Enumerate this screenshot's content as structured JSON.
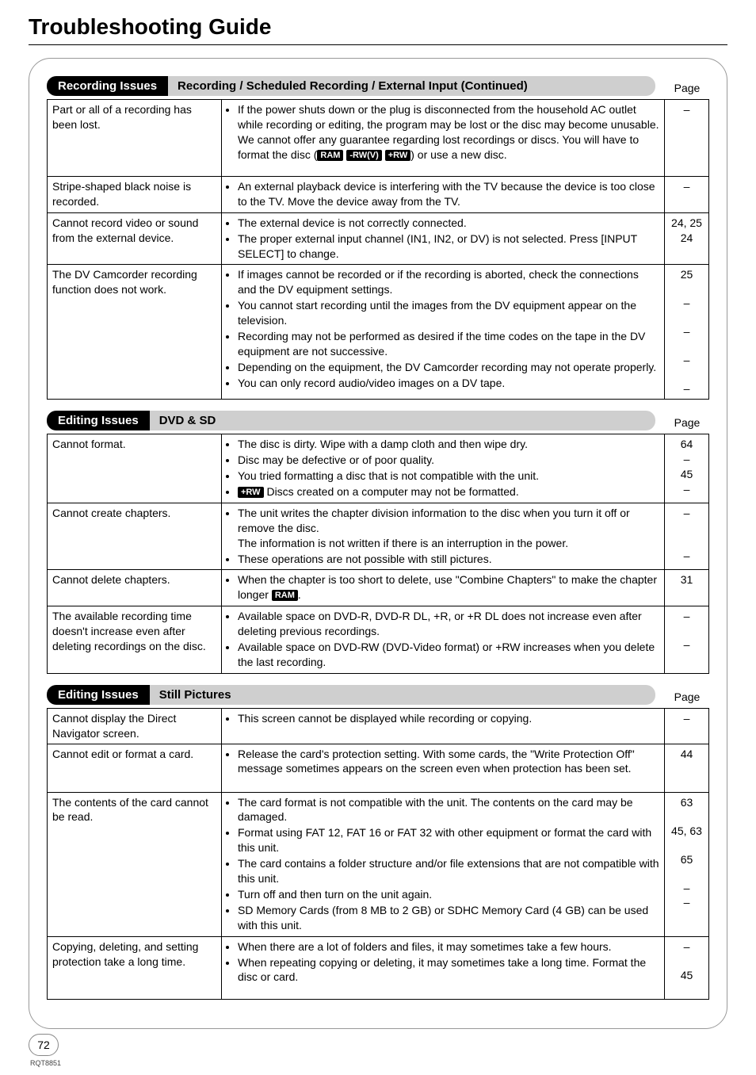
{
  "page": {
    "title": "Troubleshooting Guide",
    "number": "72",
    "doc_id": "RQT8851"
  },
  "colors": {
    "pill_black_bg": "#000000",
    "pill_black_fg": "#ffffff",
    "pill_gray_bg": "#cfcfcf",
    "frame_border": "#999999",
    "text": "#000000"
  },
  "sections": [
    {
      "pill_label": "Recording Issues",
      "sub_label": "Recording / Scheduled Recording / External Input (Continued)",
      "page_label": "Page",
      "rows": [
        {
          "issue": "Part or all of a recording has been lost.",
          "items": [
            {
              "prefix": "",
              "text": "If the power shuts down or the plug is disconnected from the household AC outlet while recording or editing, the program may be lost or the disc may become unusable. We cannot offer any guarantee regarding lost recordings or discs. You will have to format the disc (",
              "badges": [
                "RAM",
                "-RW(V)",
                "+RW"
              ],
              "suffix": ") or use a new disc.",
              "page": "–"
            }
          ]
        },
        {
          "issue": "Stripe-shaped black noise is recorded.",
          "items": [
            {
              "text": "An external playback device is interfering with the TV because the device is too close to the TV. Move the device away from the TV.",
              "page": "–"
            }
          ]
        },
        {
          "issue": "Cannot record video or sound from the external device.",
          "items": [
            {
              "text": "The external device is not correctly connected.",
              "page": "24, 25"
            },
            {
              "text": "The proper external input channel (IN1, IN2, or DV) is not selected. Press [INPUT SELECT] to change.",
              "page": "24"
            }
          ]
        },
        {
          "issue": "The DV Camcorder recording function does not work.",
          "items": [
            {
              "text": "If images cannot be recorded or if the recording is aborted, check the connections and the DV equipment settings.",
              "page": "25"
            },
            {
              "text": "You cannot start recording until the images from the DV equipment appear on the television.",
              "page": "–"
            },
            {
              "text": "Recording may not be performed as desired if the time codes on the tape in the DV equipment are not successive.",
              "page": "–"
            },
            {
              "text": "Depending on the equipment, the DV Camcorder recording may not operate properly.",
              "page": "–"
            },
            {
              "text": "You can only record audio/video images on a DV tape.",
              "page": "–"
            }
          ]
        }
      ]
    },
    {
      "pill_label": "Editing Issues",
      "sub_label": "DVD & SD",
      "page_label": "Page",
      "rows": [
        {
          "issue": "Cannot format.",
          "items": [
            {
              "text": "The disc is dirty. Wipe with a damp cloth and then wipe dry.",
              "page": "64"
            },
            {
              "text": "Disc may be defective or of poor quality.",
              "page": "–"
            },
            {
              "text": "You tried formatting a disc that is not compatible with the unit.",
              "page": "45"
            },
            {
              "badges_before": [
                "+RW"
              ],
              "text": " Discs created on a computer may not be formatted.",
              "page": "–"
            }
          ]
        },
        {
          "issue": "Cannot create chapters.",
          "items": [
            {
              "text": "The unit writes the chapter division information to the disc when you turn it off or remove the disc.\nThe information is not written if there is an interruption in the power.",
              "page": "–"
            },
            {
              "text": "These operations are not possible with still pictures.",
              "page": "–"
            }
          ]
        },
        {
          "issue": "Cannot delete chapters.",
          "items": [
            {
              "text": "When the chapter is too short to delete, use \"Combine Chapters\" to make the chapter longer ",
              "badges": [
                "RAM"
              ],
              "suffix": ".",
              "page": "31"
            }
          ]
        },
        {
          "issue": "The available recording time doesn't increase even after deleting recordings on the disc.",
          "items": [
            {
              "text": "Available space on DVD-R, DVD-R DL, +R, or +R DL does not increase even after deleting previous recordings.",
              "page": "–"
            },
            {
              "text": "Available space on DVD-RW (DVD-Video format) or +RW increases when you delete the last recording.",
              "page": "–"
            }
          ]
        }
      ]
    },
    {
      "pill_label": "Editing Issues",
      "sub_label": "Still Pictures",
      "page_label": "Page",
      "rows": [
        {
          "issue": "Cannot display the Direct Navigator screen.",
          "items": [
            {
              "text": "This screen cannot be displayed while recording or copying.",
              "page": "–"
            }
          ]
        },
        {
          "issue": "Cannot edit or format a card.",
          "items": [
            {
              "text": "Release the card's protection setting. With some cards, the \"Write Protection Off\" message sometimes appears on the screen even when protection has been set.",
              "page": "44"
            }
          ]
        },
        {
          "issue": "The contents of the card cannot be read.",
          "items": [
            {
              "text": "The card format is not compatible with the unit. The contents on the card may be damaged.",
              "page": "63"
            },
            {
              "text": "Format using FAT 12, FAT 16 or FAT 32 with other equipment or format the card with this unit.",
              "page": "45, 63"
            },
            {
              "text": "The card contains a folder structure and/or file extensions that are not compatible with this unit.",
              "page": "65"
            },
            {
              "text": "Turn off and then turn on the unit again.",
              "page": "–"
            },
            {
              "text": "SD Memory Cards (from 8 MB to 2 GB) or SDHC Memory Card (4 GB) can be used with this unit.",
              "page": "–"
            }
          ]
        },
        {
          "issue": "Copying, deleting, and setting protection take a long time.",
          "items": [
            {
              "text": "When there are a lot of folders and files, it may sometimes take a few hours.",
              "page": "–"
            },
            {
              "text": "When repeating copying or deleting, it may sometimes take a long time. Format the disc or card.",
              "page": "45"
            }
          ]
        }
      ]
    }
  ]
}
